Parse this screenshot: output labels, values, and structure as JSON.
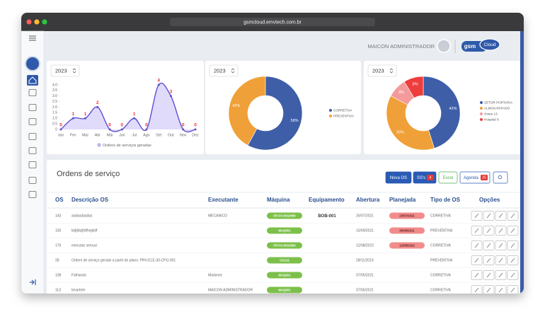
{
  "browser": {
    "url": "gsmcloud.emvtech.com.br"
  },
  "header": {
    "user": "MAICON ADMINISTRADOR",
    "logo": "gsm",
    "logo_cloud": "Cloud"
  },
  "chart_data": [
    {
      "type": "line",
      "year": "2023",
      "categories": [
        "Jan",
        "Fev",
        "Mar",
        "Abr",
        "Mai",
        "Jun",
        "Jul",
        "Ago",
        "Set",
        "Out",
        "Nov",
        "Dez"
      ],
      "values": [
        0,
        1,
        1,
        2,
        0,
        0,
        1,
        0,
        4,
        3,
        0,
        0
      ],
      "ylim": [
        0,
        4
      ],
      "yticks": [
        0,
        0.5,
        {
          "value": 1,
          "label": "1.0"
        },
        1.5,
        {
          "value": 2,
          "label": "2.0"
        },
        2.5,
        {
          "value": 3,
          "label": "3.0"
        },
        3.5,
        {
          "value": 4,
          "label": "4.0"
        }
      ],
      "color": "#5b4fd0",
      "fill": "#d8d2fa",
      "label_color": "#e8303a",
      "legend": "Ordens de serviços geradas"
    },
    {
      "type": "pie",
      "year": "2023",
      "categories": [
        "CORRETIVA",
        "PREVENTIVA"
      ],
      "values": [
        58,
        42
      ],
      "value_labels": [
        "58%",
        "42%"
      ],
      "colors": [
        "#3e5ea8",
        "#f0a038"
      ]
    },
    {
      "type": "pie",
      "year": "2023",
      "categories": [
        "SETOR PORTARIA",
        "ALMOXARIFADO",
        "chave 13",
        "Hospital X"
      ],
      "values": [
        42,
        35,
        8,
        8
      ],
      "value_labels": [
        "42%",
        "35%",
        "8%",
        "8%"
      ],
      "colors": [
        "#3e5ea8",
        "#f0a038",
        "#f49a9a",
        "#ee3d3d"
      ]
    }
  ],
  "orders": {
    "title": "Ordens de serviço",
    "buttons": {
      "new": "Nova OS",
      "ss": "SS's",
      "ss_badge": 4,
      "excel": "Excel",
      "agenda": "Agenda",
      "agenda_badge": 25
    },
    "columns": [
      "OS",
      "Descrição OS",
      "Executante",
      "Máquina",
      "Equipamento",
      "Abertura",
      "Planejada",
      "Tipo de OS",
      "Opções"
    ],
    "rows": [
      [
        143,
        "asdasdasdas",
        "MECANICO",
        "FR-FO-0010000",
        "BOB-001",
        "25/07/2021",
        "23/07/2021",
        "CORRETIVA"
      ],
      [
        150,
        "kldjfdsljfdfhejkldf",
        null,
        "MAQ001",
        null,
        "15/09/2021",
        "30/09/2021",
        "PREVENTIVA"
      ],
      [
        176,
        "executar servuci",
        null,
        "FR-FO-0010000",
        null,
        "12/08/2022",
        "12/08/2022",
        "CORRETIVA"
      ],
      [
        28,
        "Ordem de serviço gerado a partir do plano: PRV-ELE-30-CPU-001",
        null,
        "COL01",
        null,
        "28/11/2019",
        null,
        "PREVENTIVA"
      ],
      [
        108,
        "Falhando",
        "Markevis",
        "MAQ001",
        null,
        "07/05/2021",
        null,
        "CORRETIVA"
      ],
      [
        113,
        "tevartete",
        "MAICON ADMINISTRADOR",
        "MAQ001",
        null,
        "07/05/2021",
        null,
        "CORRETIVA"
      ]
    ]
  }
}
